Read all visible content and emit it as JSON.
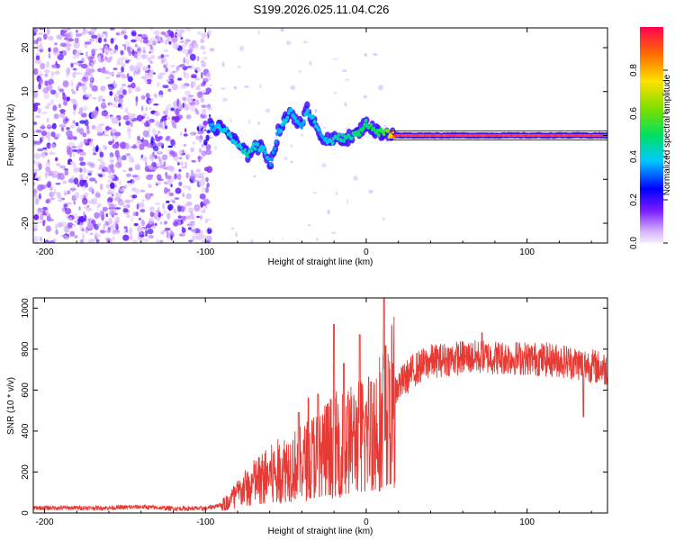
{
  "chart_data": [
    {
      "type": "heatmap",
      "title": "S199.2026.025.11.04.C26",
      "xlabel": "Height of straight line (km)",
      "ylabel": "Frequency (Hz)",
      "xlim": [
        -207,
        150
      ],
      "ylim": [
        -24.5,
        24.5
      ],
      "xticks": [
        -200,
        -100,
        0,
        100
      ],
      "yticks": [
        -20,
        -10,
        0,
        10,
        20
      ],
      "colorbar": {
        "label": "Normalized spectral amplitude",
        "range": [
          0,
          1
        ],
        "ticks": [
          "0.0",
          "0.2",
          "0.4",
          "0.6",
          "0.8"
        ]
      },
      "features": {
        "noise_region_x": [
          -207,
          -97
        ],
        "signal_track": [
          {
            "x": -97,
            "y": 2.0,
            "amp": 0.35
          },
          {
            "x": -88,
            "y": 1.5,
            "amp": 0.4
          },
          {
            "x": -80,
            "y": -2.0,
            "amp": 0.4
          },
          {
            "x": -74,
            "y": -4.5,
            "amp": 0.45
          },
          {
            "x": -70,
            "y": -2.5,
            "amp": 0.4
          },
          {
            "x": -64,
            "y": -3.0,
            "amp": 0.4
          },
          {
            "x": -59,
            "y": -6.5,
            "amp": 0.35
          },
          {
            "x": -55,
            "y": 0.5,
            "amp": 0.35
          },
          {
            "x": -52,
            "y": 2.5,
            "amp": 0.4
          },
          {
            "x": -47,
            "y": 5.5,
            "amp": 0.4
          },
          {
            "x": -40,
            "y": 2.0,
            "amp": 0.35
          },
          {
            "x": -37,
            "y": 6.0,
            "amp": 0.4
          },
          {
            "x": -32,
            "y": 3.0,
            "amp": 0.4
          },
          {
            "x": -27,
            "y": -0.5,
            "amp": 0.35
          },
          {
            "x": -23,
            "y": -1.5,
            "amp": 0.4
          },
          {
            "x": -17,
            "y": -0.5,
            "amp": 0.45
          },
          {
            "x": -10,
            "y": -0.5,
            "amp": 0.45
          },
          {
            "x": -5,
            "y": 0.5,
            "amp": 0.5
          },
          {
            "x": 0,
            "y": 3.0,
            "amp": 0.5
          },
          {
            "x": 5,
            "y": 1.0,
            "amp": 0.5
          },
          {
            "x": 12,
            "y": 0.5,
            "amp": 0.55
          },
          {
            "x": 18,
            "y": 0.0,
            "amp": 0.9
          },
          {
            "x": 150,
            "y": 0.0,
            "amp": 0.9
          }
        ]
      }
    },
    {
      "type": "line",
      "xlabel": "Height of straight line (km)",
      "ylabel": "SNR (10 * v/v)",
      "xlim": [
        -207,
        150
      ],
      "ylim": [
        0,
        1050
      ],
      "xticks": [
        -200,
        -100,
        0,
        100
      ],
      "yticks": [
        0,
        200,
        400,
        600,
        800,
        1000
      ],
      "series": [
        {
          "name": "SNR",
          "color": "#e83a35",
          "envelope": [
            {
              "x": -207,
              "y": 25
            },
            {
              "x": -160,
              "y": 25
            },
            {
              "x": -140,
              "y": 30
            },
            {
              "x": -120,
              "y": 22
            },
            {
              "x": -100,
              "y": 22
            },
            {
              "x": -90,
              "y": 40
            },
            {
              "x": -80,
              "y": 100
            },
            {
              "x": -70,
              "y": 160
            },
            {
              "x": -60,
              "y": 200
            },
            {
              "x": -50,
              "y": 240
            },
            {
              "x": -40,
              "y": 260
            },
            {
              "x": -30,
              "y": 320
            },
            {
              "x": -20,
              "y": 360
            },
            {
              "x": -10,
              "y": 380
            },
            {
              "x": 0,
              "y": 420
            },
            {
              "x": 10,
              "y": 500
            },
            {
              "x": 20,
              "y": 620
            },
            {
              "x": 30,
              "y": 700
            },
            {
              "x": 40,
              "y": 740
            },
            {
              "x": 60,
              "y": 760
            },
            {
              "x": 80,
              "y": 760
            },
            {
              "x": 100,
              "y": 755
            },
            {
              "x": 120,
              "y": 745
            },
            {
              "x": 140,
              "y": 720
            },
            {
              "x": 150,
              "y": 700
            }
          ],
          "peaks": [
            {
              "x": -42,
              "y": 490
            },
            {
              "x": -36,
              "y": 560
            },
            {
              "x": -30,
              "y": 580
            },
            {
              "x": -20,
              "y": 920
            },
            {
              "x": -14,
              "y": 730
            },
            {
              "x": -4,
              "y": 870
            },
            {
              "x": 3,
              "y": 640
            },
            {
              "x": 11,
              "y": 1050
            },
            {
              "x": 14,
              "y": 740
            },
            {
              "x": 72,
              "y": 880
            },
            {
              "x": 135,
              "y": 470
            }
          ]
        }
      ]
    }
  ]
}
